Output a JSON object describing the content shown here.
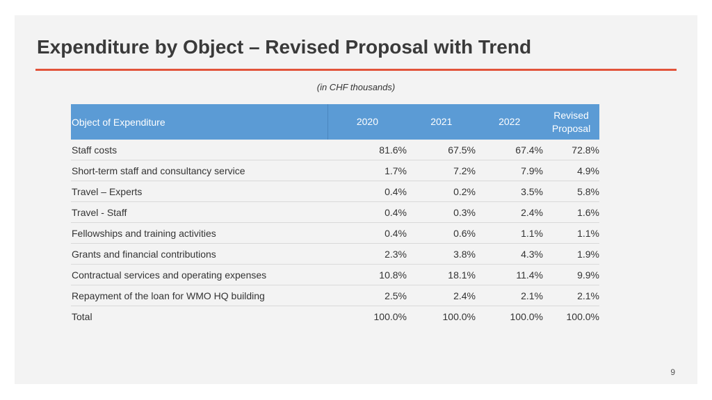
{
  "slide": {
    "title": "Expenditure by Object – Revised Proposal with Trend",
    "subtitle": "(in CHF thousands)",
    "page_number": "9",
    "accent_color": "#e2533a",
    "header_color": "#5b9bd5"
  },
  "table": {
    "headers": [
      "Object of Expenditure",
      "2020",
      "2021",
      "2022",
      "Revised\nProposal"
    ],
    "rows": [
      [
        "Staff costs",
        "81.6%",
        "67.5%",
        "67.4%",
        "72.8%"
      ],
      [
        "Short-term staff and consultancy service",
        "1.7%",
        "7.2%",
        "7.9%",
        "4.9%"
      ],
      [
        "Travel – Experts",
        "0.4%",
        "0.2%",
        "3.5%",
        "5.8%"
      ],
      [
        "Travel - Staff",
        "0.4%",
        "0.3%",
        "2.4%",
        "1.6%"
      ],
      [
        "Fellowships and training activities",
        "0.4%",
        "0.6%",
        "1.1%",
        "1.1%"
      ],
      [
        "Grants and financial contributions",
        "2.3%",
        "3.8%",
        "4.3%",
        "1.9%"
      ],
      [
        "Contractual services and operating expenses",
        "10.8%",
        "18.1%",
        "11.4%",
        "9.9%"
      ],
      [
        "Repayment of the loan for WMO HQ building",
        "2.5%",
        "2.4%",
        "2.1%",
        "2.1%"
      ],
      [
        "Total",
        "100.0%",
        "100.0%",
        "100.0%",
        "100.0%"
      ]
    ]
  }
}
